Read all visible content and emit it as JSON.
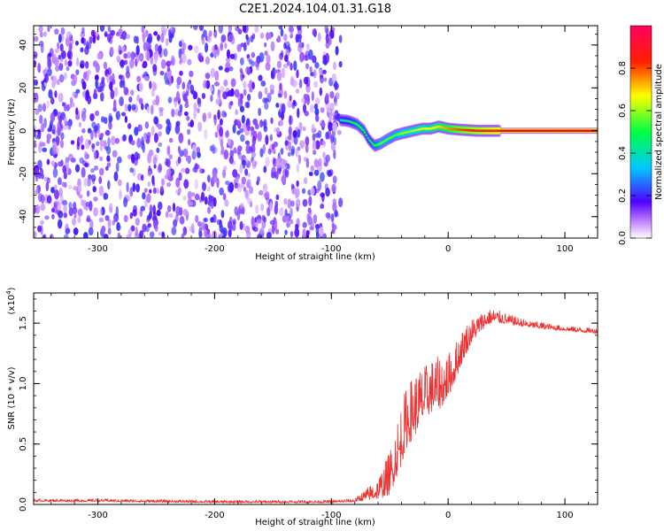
{
  "figure_title": "C2E1.2024.104.01.31.G18",
  "colors": {
    "noise_purple": "#7000e8",
    "snr_line": "#f03030",
    "track_red": "#ff0000"
  },
  "chart_data": [
    {
      "type": "heatmap",
      "title": "C2E1.2024.104.01.31.G18",
      "xlabel": "Height of straight line (km)",
      "ylabel": "Frequency (Hz)",
      "xlim": [
        -355,
        128
      ],
      "ylim": [
        -50,
        49
      ],
      "xticks": [
        -300,
        -200,
        -100,
        0,
        100
      ],
      "xtick_labels": [
        "-300",
        "-200",
        "-100",
        "0",
        "100"
      ],
      "yticks": [
        -40,
        -20,
        0,
        20,
        40
      ],
      "ytick_labels": [
        "-40",
        "-20",
        "0",
        "20",
        "40"
      ],
      "colorbar": {
        "label": "Normalized spectral amplitude",
        "range": [
          0.0,
          1.0
        ],
        "ticks": [
          0.0,
          0.2,
          0.4,
          0.6,
          0.8
        ],
        "tick_labels": [
          "0.0",
          "0.2",
          "0.4",
          "0.6",
          "0.8"
        ],
        "colormap": "rainbow"
      },
      "noise_region": {
        "x_range": [
          -355,
          -92
        ],
        "y_range": [
          -50,
          49
        ],
        "amplitude": 0.15
      },
      "signal_track": {
        "x": [
          -92,
          -85,
          -78,
          -72,
          -68,
          -63,
          -58,
          -52,
          -45,
          -38,
          -30,
          -22,
          -15,
          -8,
          0,
          10,
          25,
          45,
          128
        ],
        "y": [
          5,
          4.5,
          3,
          0,
          -4,
          -7,
          -6,
          -4,
          -2,
          -1,
          0,
          1,
          1,
          2,
          1,
          0.5,
          0,
          0,
          0
        ],
        "amplitude": [
          0.4,
          0.45,
          0.5,
          0.5,
          0.45,
          0.5,
          0.55,
          0.55,
          0.55,
          0.6,
          0.6,
          0.65,
          0.65,
          0.7,
          0.75,
          0.8,
          0.85,
          0.9,
          0.9
        ]
      }
    },
    {
      "type": "line",
      "xlabel": "Height of straight line (km)",
      "ylabel": "SNR (10 * v/v)",
      "y_multiplier_label": "(x10",
      "y_multiplier_exp": "4",
      "y_multiplier_close": ")",
      "xlim": [
        -355,
        128
      ],
      "ylim": [
        0,
        1.75
      ],
      "xticks": [
        -300,
        -200,
        -100,
        0,
        100
      ],
      "xtick_labels": [
        "-300",
        "-200",
        "-100",
        "0",
        "100"
      ],
      "yticks": [
        0.0,
        0.5,
        1.0,
        1.5
      ],
      "ytick_labels": [
        "0.0",
        "0.5",
        "1.0",
        "1.5"
      ],
      "series": [
        {
          "x": [
            -355,
            -300,
            -200,
            -100,
            -80,
            -60,
            -50,
            -45,
            -40,
            -35,
            -30,
            -25,
            -20,
            -15,
            -10,
            -5,
            0,
            5,
            10,
            15,
            20,
            25,
            30,
            35,
            40,
            45,
            50,
            60,
            70,
            80,
            90,
            100,
            110,
            128
          ],
          "y": [
            0.03,
            0.03,
            0.02,
            0.02,
            0.03,
            0.1,
            0.2,
            0.35,
            0.5,
            0.65,
            0.72,
            0.78,
            0.85,
            0.9,
            0.92,
            0.95,
            1.0,
            1.1,
            1.22,
            1.32,
            1.4,
            1.45,
            1.5,
            1.53,
            1.54,
            1.53,
            1.52,
            1.5,
            1.48,
            1.47,
            1.46,
            1.45,
            1.44,
            1.43
          ],
          "noise": [
            0.015,
            0.015,
            0.015,
            0.015,
            0.02,
            0.12,
            0.25,
            0.3,
            0.35,
            0.35,
            0.35,
            0.35,
            0.3,
            0.3,
            0.3,
            0.3,
            0.25,
            0.22,
            0.2,
            0.17,
            0.14,
            0.12,
            0.1,
            0.09,
            0.08,
            0.07,
            0.06,
            0.05,
            0.04,
            0.04,
            0.03,
            0.03,
            0.03,
            0.03
          ]
        }
      ]
    }
  ]
}
